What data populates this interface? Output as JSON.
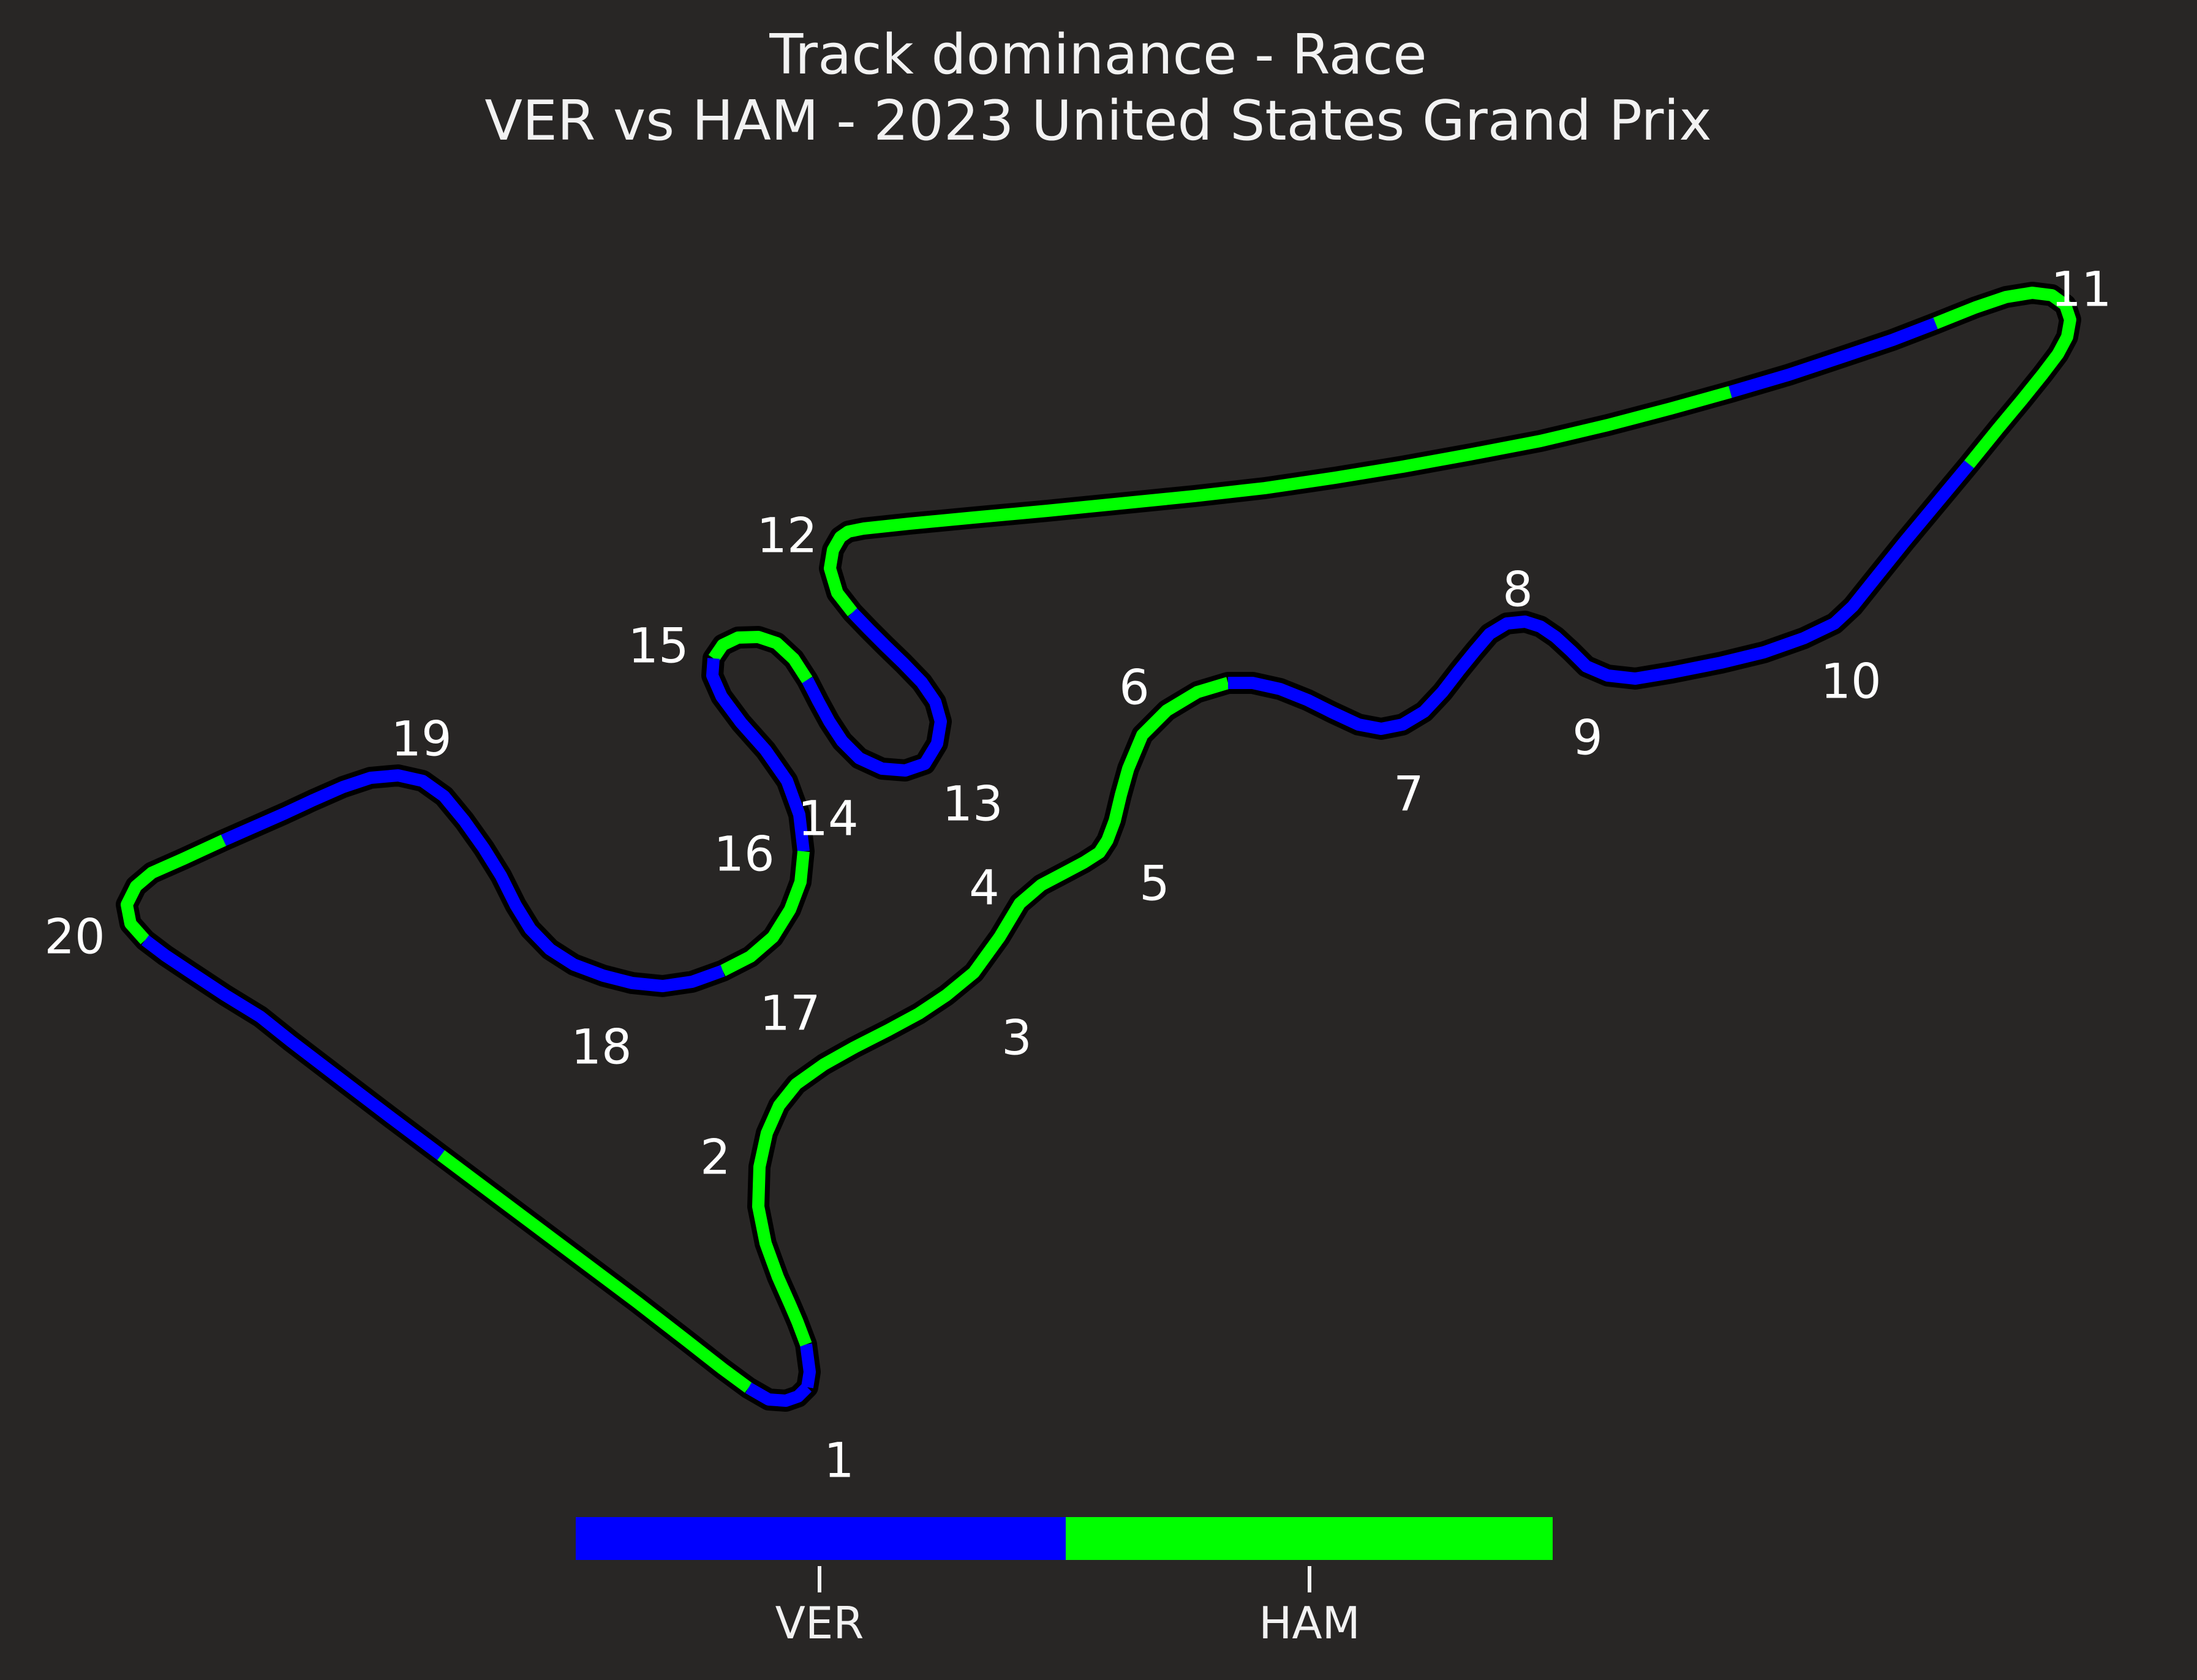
{
  "chart_data": {
    "type": "line",
    "title": "Track dominance - Race",
    "subtitle": "VER vs HAM - 2023 United States Grand Prix",
    "xlabel": "",
    "ylabel": "",
    "grid": false,
    "legend": "bottom colorbar",
    "drivers": [
      {
        "name": "VER",
        "color": "#0000ff"
      },
      {
        "name": "HAM",
        "color": "#00ff00"
      }
    ],
    "corners": [
      {
        "label": "1"
      },
      {
        "label": "2"
      },
      {
        "label": "3"
      },
      {
        "label": "4"
      },
      {
        "label": "5"
      },
      {
        "label": "6"
      },
      {
        "label": "7"
      },
      {
        "label": "8"
      },
      {
        "label": "9"
      },
      {
        "label": "10"
      },
      {
        "label": "11"
      },
      {
        "label": "12"
      },
      {
        "label": "13"
      },
      {
        "label": "14"
      },
      {
        "label": "15"
      },
      {
        "label": "16"
      },
      {
        "label": "17"
      },
      {
        "label": "18"
      },
      {
        "label": "19"
      },
      {
        "label": "20"
      }
    ],
    "segments": [
      {
        "driver": "VER"
      },
      {
        "driver": "HAM"
      },
      {
        "driver": "VER"
      },
      {
        "driver": "HAM"
      },
      {
        "driver": "VER"
      },
      {
        "driver": "HAM"
      },
      {
        "driver": "VER"
      },
      {
        "driver": "HAM"
      },
      {
        "driver": "VER"
      },
      {
        "driver": "HAM"
      },
      {
        "driver": "VER"
      },
      {
        "driver": "HAM"
      },
      {
        "driver": "VER"
      },
      {
        "driver": "HAM"
      },
      {
        "driver": "VER"
      },
      {
        "driver": "HAM"
      },
      {
        "driver": "VER"
      },
      {
        "driver": "HAM"
      },
      {
        "driver": "VER"
      }
    ]
  }
}
